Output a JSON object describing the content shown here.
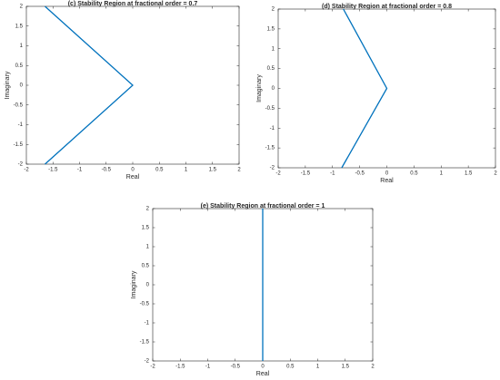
{
  "chart_data": [
    {
      "type": "line",
      "title": "(c) Stability Region at fractional order = 0.7",
      "xlabel": "Real",
      "ylabel": "Imaginary",
      "x": [
        -1.65,
        0,
        -1.65
      ],
      "values": [
        2,
        0,
        -2
      ],
      "color": "#0072bd",
      "xlim": [
        -2,
        2
      ],
      "ylim": [
        -2,
        2
      ],
      "xticks": [
        -2,
        -1.5,
        -1,
        -0.5,
        0,
        0.5,
        1,
        1.5,
        2
      ],
      "yticks": [
        -2,
        -1.5,
        -1,
        -0.5,
        0,
        0.5,
        1,
        1.5,
        2
      ]
    },
    {
      "type": "line",
      "title": "(d) Stability Region at fractional order = 0.8",
      "xlabel": "Real",
      "ylabel": "Imaginary",
      "x": [
        -0.8,
        0,
        -0.83
      ],
      "values": [
        2,
        0,
        -2
      ],
      "color": "#0072bd",
      "xlim": [
        -2,
        2
      ],
      "ylim": [
        -2,
        2
      ],
      "xticks": [
        -2,
        -1.5,
        -1,
        -0.5,
        0,
        0.5,
        1,
        1.5,
        2
      ],
      "yticks": [
        -2,
        -1.5,
        -1,
        -0.5,
        0,
        0.5,
        1,
        1.5,
        2
      ]
    },
    {
      "type": "line",
      "title": "(e) Stability Region at fractional order = 1",
      "xlabel": "Real",
      "ylabel": "Imaginary",
      "x": [
        0,
        0
      ],
      "values": [
        2,
        -2
      ],
      "color": "#0072bd",
      "xlim": [
        -2,
        2
      ],
      "ylim": [
        -2,
        2
      ],
      "xticks": [
        -2,
        -1.5,
        -1,
        -0.5,
        0,
        0.5,
        1,
        1.5,
        2
      ],
      "yticks": [
        -2,
        -1.5,
        -1,
        -0.5,
        0,
        0.5,
        1,
        1.5,
        2
      ]
    }
  ]
}
